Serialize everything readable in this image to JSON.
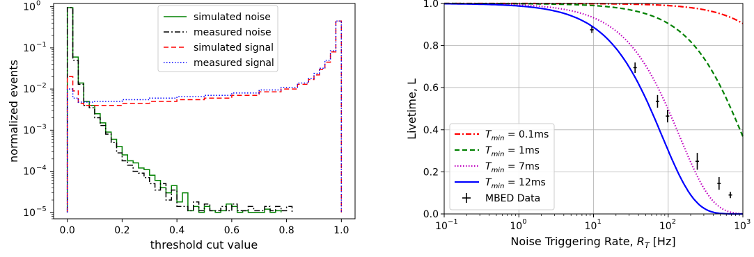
{
  "chart_data": [
    {
      "type": "step",
      "xlabel": "threshold cut value",
      "ylabel": "normalized events",
      "xlim": [
        -0.05,
        1.05
      ],
      "ylim": [
        7e-06,
        1.2
      ],
      "yscale": "log",
      "grid": false,
      "legend_position": "top-center",
      "x_ticks": [
        "0.0",
        "0.2",
        "0.4",
        "0.6",
        "0.8",
        "1.0"
      ],
      "y_ticks": [
        "10",
        "10",
        "10",
        "10",
        "10",
        "10"
      ],
      "y_tick_exponents": [
        "0",
        "−1",
        "−2",
        "−3",
        "−4",
        "−5"
      ],
      "series": [
        {
          "name": "simulated noise",
          "color": "#008000",
          "dash": "solid",
          "points": [
            [
              0.0,
              1e-05
            ],
            [
              0.0,
              0.95
            ],
            [
              0.02,
              0.95
            ],
            [
              0.02,
              0.06
            ],
            [
              0.04,
              0.06
            ],
            [
              0.04,
              0.014
            ],
            [
              0.06,
              0.014
            ],
            [
              0.06,
              0.005
            ],
            [
              0.08,
              0.005
            ],
            [
              0.08,
              0.004
            ],
            [
              0.1,
              0.004
            ],
            [
              0.1,
              0.0025
            ],
            [
              0.12,
              0.0025
            ],
            [
              0.12,
              0.0015
            ],
            [
              0.14,
              0.0015
            ],
            [
              0.14,
              0.0009
            ],
            [
              0.16,
              0.0009
            ],
            [
              0.16,
              0.0006
            ],
            [
              0.18,
              0.0006
            ],
            [
              0.18,
              0.0004
            ],
            [
              0.2,
              0.0004
            ],
            [
              0.2,
              0.00025
            ],
            [
              0.22,
              0.00025
            ],
            [
              0.22,
              0.00018
            ],
            [
              0.24,
              0.00018
            ],
            [
              0.24,
              0.00016
            ],
            [
              0.26,
              0.00016
            ],
            [
              0.26,
              0.00012
            ],
            [
              0.28,
              0.00012
            ],
            [
              0.28,
              0.00011
            ],
            [
              0.3,
              0.00011
            ],
            [
              0.3,
              8e-05
            ],
            [
              0.32,
              8e-05
            ],
            [
              0.32,
              6e-05
            ],
            [
              0.34,
              6e-05
            ],
            [
              0.34,
              4e-05
            ],
            [
              0.36,
              4e-05
            ],
            [
              0.36,
              3e-05
            ],
            [
              0.38,
              3e-05
            ],
            [
              0.38,
              4.5e-05
            ],
            [
              0.4,
              4.5e-05
            ],
            [
              0.4,
              1.8e-05
            ],
            [
              0.42,
              1.8e-05
            ],
            [
              0.42,
              3e-05
            ],
            [
              0.44,
              3e-05
            ],
            [
              0.44,
              1.1e-05
            ],
            [
              0.46,
              1.1e-05
            ],
            [
              0.46,
              1.4e-05
            ],
            [
              0.48,
              1.4e-05
            ],
            [
              0.48,
              1e-05
            ],
            [
              0.5,
              1e-05
            ],
            [
              0.5,
              1.4e-05
            ],
            [
              0.52,
              1.4e-05
            ],
            [
              0.52,
              1.1e-05
            ],
            [
              0.54,
              1.1e-05
            ],
            [
              0.54,
              1e-05
            ],
            [
              0.56,
              1e-05
            ],
            [
              0.56,
              1.1e-05
            ],
            [
              0.58,
              1.1e-05
            ],
            [
              0.58,
              1.6e-05
            ],
            [
              0.6,
              1.6e-05
            ],
            [
              0.6,
              1.4e-05
            ],
            [
              0.62,
              1.4e-05
            ],
            [
              0.62,
              1e-05
            ],
            [
              0.64,
              1e-05
            ],
            [
              0.64,
              1.1e-05
            ],
            [
              0.66,
              1.1e-05
            ],
            [
              0.66,
              1e-05
            ],
            [
              0.72,
              1e-05
            ],
            [
              0.72,
              1.2e-05
            ],
            [
              0.74,
              1.2e-05
            ],
            [
              0.74,
              1e-05
            ],
            [
              0.76,
              1e-05
            ],
            [
              0.76,
              1.1e-05
            ],
            [
              0.78,
              1.1e-05
            ],
            [
              0.78,
              1e-05
            ]
          ]
        },
        {
          "name": "measured noise",
          "color": "#000000",
          "dash": "dashdot",
          "points": [
            [
              0.0,
              1e-05
            ],
            [
              0.0,
              0.95
            ],
            [
              0.02,
              0.95
            ],
            [
              0.02,
              0.05
            ],
            [
              0.04,
              0.05
            ],
            [
              0.04,
              0.013
            ],
            [
              0.06,
              0.013
            ],
            [
              0.06,
              0.004
            ],
            [
              0.08,
              0.004
            ],
            [
              0.08,
              0.0035
            ],
            [
              0.1,
              0.0035
            ],
            [
              0.1,
              0.002
            ],
            [
              0.12,
              0.002
            ],
            [
              0.12,
              0.0013
            ],
            [
              0.14,
              0.0013
            ],
            [
              0.14,
              0.0008
            ],
            [
              0.16,
              0.0008
            ],
            [
              0.16,
              0.0005
            ],
            [
              0.18,
              0.0005
            ],
            [
              0.18,
              0.00028
            ],
            [
              0.2,
              0.00028
            ],
            [
              0.2,
              0.00018
            ],
            [
              0.22,
              0.00018
            ],
            [
              0.22,
              0.00014
            ],
            [
              0.24,
              0.00014
            ],
            [
              0.24,
              0.0001
            ],
            [
              0.26,
              0.0001
            ],
            [
              0.26,
              9e-05
            ],
            [
              0.28,
              9e-05
            ],
            [
              0.28,
              7e-05
            ],
            [
              0.3,
              7e-05
            ],
            [
              0.3,
              5e-05
            ],
            [
              0.32,
              5e-05
            ],
            [
              0.32,
              3.5e-05
            ],
            [
              0.34,
              3.5e-05
            ],
            [
              0.34,
              5e-05
            ],
            [
              0.36,
              5e-05
            ],
            [
              0.36,
              2e-05
            ],
            [
              0.38,
              2e-05
            ],
            [
              0.38,
              3.5e-05
            ],
            [
              0.4,
              3.5e-05
            ],
            [
              0.4,
              1.4e-05
            ],
            [
              0.44,
              1.4e-05
            ],
            [
              0.44,
              1.1e-05
            ],
            [
              0.46,
              1.1e-05
            ],
            [
              0.46,
              1.8e-05
            ],
            [
              0.48,
              1.8e-05
            ],
            [
              0.48,
              1.1e-05
            ],
            [
              0.5,
              1.1e-05
            ],
            [
              0.5,
              1.6e-05
            ],
            [
              0.52,
              1.6e-05
            ],
            [
              0.52,
              1.1e-05
            ],
            [
              0.56,
              1.1e-05
            ],
            [
              0.56,
              1.4e-05
            ],
            [
              0.58,
              1.4e-05
            ],
            [
              0.58,
              1.1e-05
            ],
            [
              0.6,
              1.1e-05
            ],
            [
              0.6,
              1.6e-05
            ],
            [
              0.62,
              1.6e-05
            ],
            [
              0.62,
              1.1e-05
            ],
            [
              0.66,
              1.1e-05
            ],
            [
              0.66,
              1.4e-05
            ],
            [
              0.68,
              1.4e-05
            ],
            [
              0.68,
              1.1e-05
            ],
            [
              0.72,
              1.1e-05
            ],
            [
              0.72,
              1.4e-05
            ],
            [
              0.74,
              1.4e-05
            ],
            [
              0.74,
              1.1e-05
            ],
            [
              0.76,
              1.1e-05
            ],
            [
              0.76,
              1.4e-05
            ],
            [
              0.78,
              1.4e-05
            ],
            [
              0.78,
              1.1e-05
            ],
            [
              0.8,
              1.1e-05
            ],
            [
              0.8,
              1.4e-05
            ],
            [
              0.82,
              1.4e-05
            ],
            [
              0.82,
              1e-05
            ]
          ]
        },
        {
          "name": "simulated signal",
          "color": "#ff0000",
          "dash": "dashed",
          "points": [
            [
              0.0,
              1e-05
            ],
            [
              0.0,
              0.02
            ],
            [
              0.02,
              0.02
            ],
            [
              0.02,
              0.009
            ],
            [
              0.04,
              0.009
            ],
            [
              0.04,
              0.0045
            ],
            [
              0.06,
              0.0045
            ],
            [
              0.06,
              0.004
            ],
            [
              0.2,
              0.004
            ],
            [
              0.2,
              0.0045
            ],
            [
              0.3,
              0.0045
            ],
            [
              0.3,
              0.005
            ],
            [
              0.4,
              0.005
            ],
            [
              0.4,
              0.0055
            ],
            [
              0.5,
              0.0055
            ],
            [
              0.5,
              0.006
            ],
            [
              0.6,
              0.006
            ],
            [
              0.6,
              0.007
            ],
            [
              0.7,
              0.007
            ],
            [
              0.7,
              0.0085
            ],
            [
              0.78,
              0.0085
            ],
            [
              0.78,
              0.01
            ],
            [
              0.84,
              0.01
            ],
            [
              0.84,
              0.013
            ],
            [
              0.88,
              0.013
            ],
            [
              0.88,
              0.017
            ],
            [
              0.9,
              0.017
            ],
            [
              0.9,
              0.022
            ],
            [
              0.92,
              0.022
            ],
            [
              0.92,
              0.03
            ],
            [
              0.94,
              0.03
            ],
            [
              0.94,
              0.045
            ],
            [
              0.96,
              0.045
            ],
            [
              0.96,
              0.08
            ],
            [
              0.98,
              0.08
            ],
            [
              0.98,
              0.45
            ],
            [
              1.0,
              0.45
            ],
            [
              1.0,
              1e-05
            ]
          ]
        },
        {
          "name": "measured signal",
          "color": "#0000ff",
          "dash": "dotted",
          "points": [
            [
              0.0,
              1e-05
            ],
            [
              0.0,
              0.01
            ],
            [
              0.02,
              0.01
            ],
            [
              0.02,
              0.006
            ],
            [
              0.04,
              0.006
            ],
            [
              0.04,
              0.0048
            ],
            [
              0.1,
              0.0048
            ],
            [
              0.1,
              0.005
            ],
            [
              0.2,
              0.005
            ],
            [
              0.2,
              0.0055
            ],
            [
              0.3,
              0.0055
            ],
            [
              0.3,
              0.006
            ],
            [
              0.4,
              0.006
            ],
            [
              0.4,
              0.0065
            ],
            [
              0.5,
              0.0065
            ],
            [
              0.5,
              0.007
            ],
            [
              0.6,
              0.007
            ],
            [
              0.6,
              0.008
            ],
            [
              0.7,
              0.008
            ],
            [
              0.7,
              0.0095
            ],
            [
              0.78,
              0.0095
            ],
            [
              0.78,
              0.011
            ],
            [
              0.84,
              0.011
            ],
            [
              0.84,
              0.014
            ],
            [
              0.88,
              0.014
            ],
            [
              0.88,
              0.018
            ],
            [
              0.9,
              0.018
            ],
            [
              0.9,
              0.024
            ],
            [
              0.92,
              0.024
            ],
            [
              0.92,
              0.032
            ],
            [
              0.94,
              0.032
            ],
            [
              0.94,
              0.05
            ],
            [
              0.96,
              0.05
            ],
            [
              0.96,
              0.085
            ],
            [
              0.98,
              0.085
            ],
            [
              0.98,
              0.45
            ],
            [
              1.0,
              0.45
            ],
            [
              1.0,
              1e-05
            ]
          ]
        }
      ]
    },
    {
      "type": "line",
      "xlabel_prefix": "Noise Triggering Rate, ",
      "xlabel_var": "R",
      "xlabel_sub": "T",
      "xlabel_suffix": " [Hz]",
      "ylabel": "Livetime, L",
      "xlim": [
        0.1,
        1000
      ],
      "ylim": [
        0.0,
        1.0
      ],
      "xscale": "log",
      "grid": true,
      "legend_position": "bottom-left",
      "x_ticks": [
        "10",
        "10",
        "10",
        "10",
        "10"
      ],
      "x_tick_exponents": [
        "−1",
        "0",
        "1",
        "2",
        "3"
      ],
      "y_ticks": [
        "0.0",
        "0.2",
        "0.4",
        "0.6",
        "0.8",
        "1.0"
      ],
      "legend_var": "T",
      "legend_sub": "min",
      "series": [
        {
          "name_value": " = 0.1ms",
          "tau_ms": 0.1,
          "color": "#ff0000",
          "dash": "dashdot"
        },
        {
          "name_value": " = 1ms",
          "tau_ms": 1,
          "color": "#008000",
          "dash": "dashed"
        },
        {
          "name_value": " = 7ms",
          "tau_ms": 7,
          "color": "#bf00bf",
          "dash": "dotted"
        },
        {
          "name_value": " = 12ms",
          "tau_ms": 12,
          "color": "#0000ff",
          "dash": "solid"
        }
      ],
      "data_series": {
        "name": "MBED Data",
        "color": "#000000",
        "points": [
          {
            "x": 9.5,
            "y": 0.875,
            "yerr": 0.015
          },
          {
            "x": 36,
            "y": 0.695,
            "yerr": 0.025
          },
          {
            "x": 72,
            "y": 0.535,
            "yerr": 0.03
          },
          {
            "x": 98,
            "y": 0.465,
            "yerr": 0.03
          },
          {
            "x": 245,
            "y": 0.25,
            "yerr": 0.04
          },
          {
            "x": 480,
            "y": 0.145,
            "yerr": 0.03
          },
          {
            "x": 680,
            "y": 0.09,
            "yerr": 0.015
          }
        ]
      }
    }
  ]
}
